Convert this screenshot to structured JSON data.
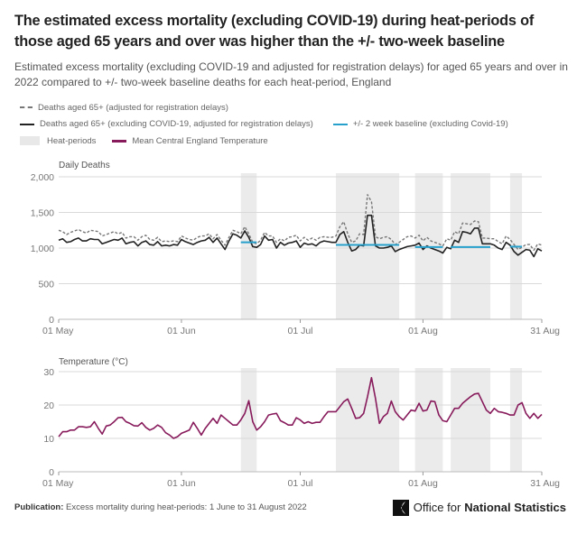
{
  "title": "The estimated excess mortality (excluding COVID-19) during heat-periods of those aged 65 years and over was higher than the +/- two-week baseline",
  "subtitle": "Estimated excess mortality (excluding COVID-19 and adjusted for registration delays) for aged 65 years and over in 2022 compared to +/- two-week baseline deaths for each heat-period, England",
  "legend": {
    "deaths_all": "Deaths aged 65+ (adjusted for registration delays)",
    "deaths_excl": "Deaths aged 65+ (excluding COVID-19, adjusted for registration delays)",
    "baseline": "+/- 2 week baseline (excluding Covid-19)",
    "heat": "Heat-periods",
    "temperature": "Mean Central England Temperature"
  },
  "colors": {
    "deaths_all": "#777777",
    "deaths_excl": "#222222",
    "baseline": "#27a0cc",
    "temperature": "#871a5b",
    "heat": "#ebebeb",
    "grid": "#d9d9d9"
  },
  "footer": {
    "label": "Publication:",
    "text": "Excess mortality during heat-periods: 1 June to 31 August 2022"
  },
  "logo": {
    "text_a": "Office for",
    "text_b": "National Statistics"
  },
  "chart_data": [
    {
      "type": "line",
      "ylabel": "Daily Deaths",
      "ylim": [
        0,
        2000
      ],
      "yticks": [
        "0",
        "500",
        "1,000",
        "1,500",
        "2,000"
      ],
      "yticks_values": [
        0,
        500,
        1000,
        1500,
        2000
      ],
      "xticks": [
        "01 May",
        "01 Jun",
        "01 Jul",
        "01 Aug",
        "31 Aug"
      ],
      "xticks_dates": [
        "2022-05-01",
        "2022-06-01",
        "2022-07-01",
        "2022-08-01",
        "2022-08-31"
      ],
      "x_start": "2022-05-01",
      "x_interval": "daily",
      "grid": true,
      "heat_periods": [
        {
          "start": "2022-06-16",
          "end": "2022-06-19"
        },
        {
          "start": "2022-07-10",
          "end": "2022-07-25"
        },
        {
          "start": "2022-07-30",
          "end": "2022-08-05"
        },
        {
          "start": "2022-08-08",
          "end": "2022-08-17"
        },
        {
          "start": "2022-08-23",
          "end": "2022-08-25"
        }
      ],
      "baselines": [
        {
          "start": "2022-06-16",
          "end": "2022-06-19",
          "value": 1080
        },
        {
          "start": "2022-07-10",
          "end": "2022-07-25",
          "value": 1045
        },
        {
          "start": "2022-07-30",
          "end": "2022-08-05",
          "value": 1015
        },
        {
          "start": "2022-08-08",
          "end": "2022-08-17",
          "value": 1015
        },
        {
          "start": "2022-08-23",
          "end": "2022-08-25",
          "value": 1020
        }
      ],
      "series": [
        {
          "name": "Deaths aged 65+ (adjusted for registration delays)",
          "style": "dashed",
          "values": [
            1250,
            1230,
            1190,
            1220,
            1240,
            1260,
            1230,
            1210,
            1250,
            1240,
            1230,
            1170,
            1190,
            1210,
            1230,
            1200,
            1220,
            1140,
            1160,
            1160,
            1110,
            1160,
            1180,
            1120,
            1110,
            1150,
            1090,
            1100,
            1090,
            1100,
            1090,
            1170,
            1140,
            1120,
            1110,
            1150,
            1170,
            1170,
            1200,
            1130,
            1190,
            1110,
            1040,
            1150,
            1250,
            1230,
            1200,
            1300,
            1200,
            1080,
            1060,
            1110,
            1220,
            1170,
            1170,
            1080,
            1130,
            1100,
            1150,
            1160,
            1180,
            1100,
            1150,
            1110,
            1140,
            1110,
            1150,
            1160,
            1150,
            1150,
            1170,
            1300,
            1370,
            1200,
            1080,
            1100,
            1200,
            1190,
            1750,
            1650,
            1160,
            1130,
            1150,
            1160,
            1120,
            1050,
            1080,
            1120,
            1160,
            1170,
            1140,
            1180,
            1100,
            1150,
            1100,
            1080,
            1060,
            1030,
            1130,
            1110,
            1230,
            1200,
            1350,
            1340,
            1330,
            1380,
            1370,
            1140,
            1140,
            1130,
            1130,
            1090,
            1060,
            1170,
            1120,
            1050,
            980,
            1010,
            1050,
            1050,
            970,
            1060,
            1040
          ]
        },
        {
          "name": "Deaths aged 65+ (excluding COVID-19, adjusted for registration delays)",
          "style": "solid",
          "values": [
            1110,
            1130,
            1080,
            1090,
            1120,
            1140,
            1100,
            1100,
            1130,
            1120,
            1120,
            1060,
            1080,
            1100,
            1120,
            1110,
            1140,
            1060,
            1080,
            1090,
            1030,
            1080,
            1100,
            1050,
            1040,
            1090,
            1030,
            1040,
            1030,
            1050,
            1040,
            1120,
            1090,
            1070,
            1050,
            1080,
            1100,
            1110,
            1150,
            1080,
            1140,
            1060,
            980,
            1100,
            1200,
            1180,
            1140,
            1240,
            1150,
            1020,
            1010,
            1050,
            1170,
            1110,
            1120,
            1000,
            1080,
            1040,
            1070,
            1080,
            1100,
            1010,
            1070,
            1050,
            1060,
            1030,
            1080,
            1100,
            1090,
            1080,
            1080,
            1190,
            1230,
            1080,
            960,
            980,
            1040,
            1030,
            1460,
            1460,
            1030,
            1000,
            1000,
            1010,
            1030,
            950,
            980,
            1000,
            1020,
            1030,
            1040,
            1070,
            980,
            1030,
            1000,
            980,
            960,
            930,
            1010,
            990,
            1110,
            1080,
            1230,
            1220,
            1200,
            1280,
            1280,
            1060,
            1060,
            1060,
            1040,
            1000,
            980,
            1080,
            1040,
            950,
            900,
            940,
            980,
            970,
            880,
            990,
            960
          ]
        }
      ]
    },
    {
      "type": "line",
      "ylabel": "Temperature (°C)",
      "ylim": [
        0,
        30
      ],
      "yticks": [
        "0",
        "10",
        "20",
        "30"
      ],
      "yticks_values": [
        0,
        10,
        20,
        30
      ],
      "xticks": [
        "01 May",
        "01 Jun",
        "01 Jul",
        "01 Aug",
        "31 Aug"
      ],
      "xticks_dates": [
        "2022-05-01",
        "2022-06-01",
        "2022-07-01",
        "2022-08-01",
        "2022-08-31"
      ],
      "x_start": "2022-05-01",
      "x_interval": "daily",
      "grid": true,
      "heat_periods": [
        {
          "start": "2022-06-16",
          "end": "2022-06-19"
        },
        {
          "start": "2022-07-10",
          "end": "2022-07-25"
        },
        {
          "start": "2022-07-30",
          "end": "2022-08-05"
        },
        {
          "start": "2022-08-08",
          "end": "2022-08-17"
        },
        {
          "start": "2022-08-23",
          "end": "2022-08-25"
        }
      ],
      "series": [
        {
          "name": "Mean Central England Temperature",
          "style": "solid",
          "values": [
            10.5,
            12,
            12,
            12.5,
            12.5,
            13.5,
            13.5,
            13.3,
            13.5,
            15,
            13,
            11.3,
            13.7,
            14,
            15,
            16.2,
            16.3,
            15,
            14.5,
            13.8,
            13.7,
            14.7,
            13.3,
            12.5,
            13,
            14,
            13.3,
            11.7,
            11,
            10,
            10.5,
            11.5,
            12,
            12.5,
            14.8,
            13,
            11,
            13,
            14.5,
            16,
            14.5,
            17,
            16,
            15,
            14,
            14,
            15.5,
            17.5,
            21.3,
            15,
            12.5,
            13.5,
            15,
            17,
            17.3,
            17.5,
            15.3,
            14.7,
            14,
            14,
            16.2,
            15.5,
            14.5,
            15,
            14.5,
            14.8,
            14.8,
            16.5,
            18,
            18,
            18,
            19.5,
            21,
            21.8,
            19,
            16,
            16.2,
            17.5,
            22.5,
            28.2,
            22,
            14.5,
            16.5,
            17.5,
            21.2,
            18,
            16.5,
            15.5,
            17,
            18.5,
            18.2,
            20.5,
            18.2,
            18.5,
            21.2,
            21,
            17,
            15.3,
            15,
            17,
            19,
            19,
            20.5,
            21.5,
            22.5,
            23.3,
            23.5,
            21,
            18.5,
            17.5,
            19,
            18,
            17.8,
            17.5,
            17,
            17,
            20,
            20.7,
            17.5,
            16,
            17.5,
            16,
            17.2
          ]
        }
      ]
    }
  ]
}
